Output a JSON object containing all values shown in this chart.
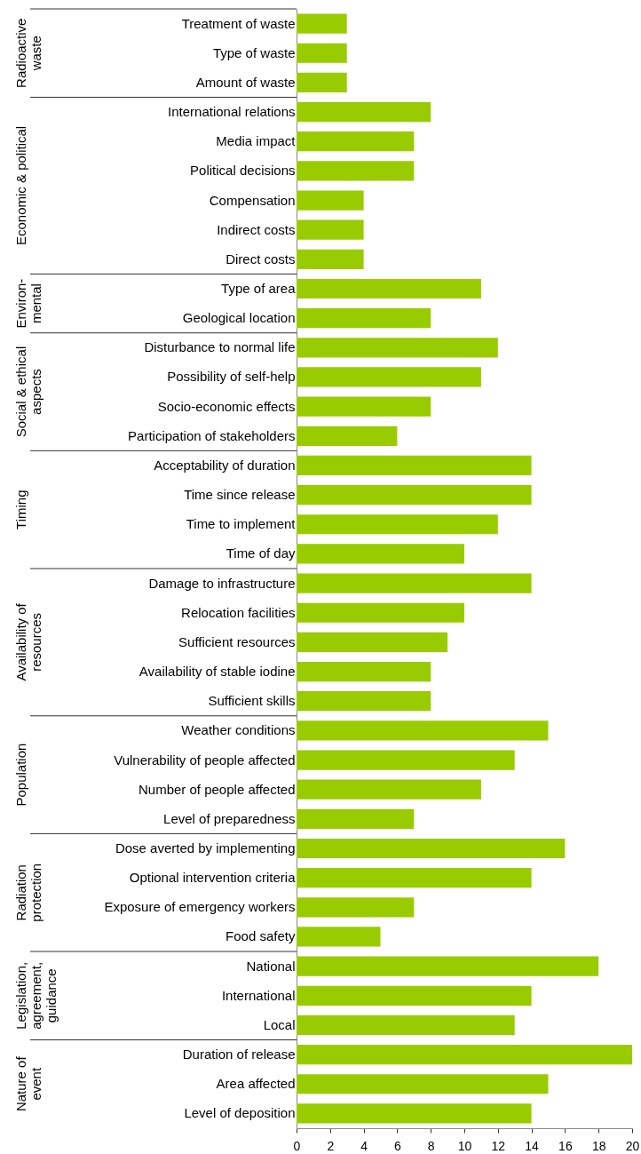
{
  "chart_data": {
    "type": "bar",
    "orientation": "horizontal",
    "categories": [
      "Treatment of waste",
      "Type of waste",
      "Amount of waste",
      "International relations",
      "Media impact",
      "Political decisions",
      "Compensation",
      "Indirect costs",
      "Direct costs",
      "Type of area",
      "Geological location",
      "Disturbance to normal life",
      "Possibility of self-help",
      "Socio-economic effects",
      "Participation of stakeholders",
      "Acceptability of duration",
      "Time since release",
      "Time to implement",
      "Time of day",
      "Damage to infrastructure",
      "Relocation facilities",
      "Sufficient resources",
      "Availability of stable iodine",
      "Sufficient skills",
      "Weather conditions",
      "Vulnerability of people affected",
      "Number of people affected",
      "Level of preparedness",
      "Dose averted by implementing",
      "Optional intervention criteria",
      "Exposure of emergency workers",
      "Food safety",
      "National",
      "International",
      "Local",
      "Duration of release",
      "Area affected",
      "Level of deposition"
    ],
    "values": [
      3,
      3,
      3,
      8,
      7,
      7,
      4,
      4,
      4,
      11,
      8,
      12,
      11,
      8,
      6,
      14,
      14,
      12,
      10,
      14,
      10,
      9,
      8,
      8,
      15,
      13,
      11,
      7,
      16,
      14,
      7,
      5,
      18,
      14,
      13,
      20,
      15,
      14
    ],
    "color": "#99cc00",
    "xlim": [
      0,
      20
    ],
    "xticks": [
      0,
      2,
      4,
      6,
      8,
      10,
      12,
      14,
      16,
      18,
      20
    ],
    "grid": false,
    "annotations": [
      "Radioactive\nwaste",
      "Economic & political",
      "Environ-\nmental",
      "Social & ethical\naspects",
      "Timing",
      "Availability of\nresources",
      "Population",
      "Radiation\nprotection",
      "Legislation,\nagreement,\nguidance",
      "Nature of\nevent"
    ]
  }
}
